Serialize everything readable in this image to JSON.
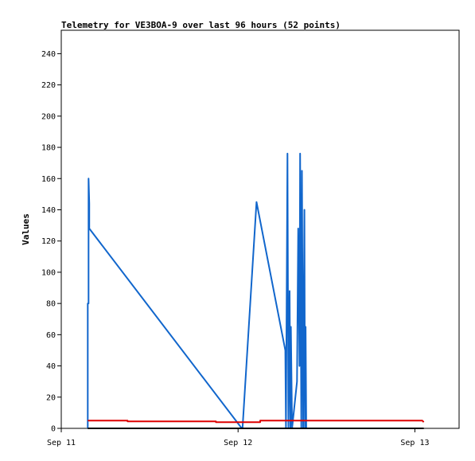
{
  "chart_data": {
    "type": "line",
    "title": "Telemetry for VE3BOA-9 over last 96 hours (52 points)",
    "xlabel": "",
    "ylabel": "Values",
    "xlim": [
      "2025-09-11T00:00",
      "2025-09-13T06:00"
    ],
    "ylim": [
      0,
      255
    ],
    "yticks": [
      0,
      20,
      40,
      60,
      80,
      100,
      120,
      140,
      160,
      180,
      200,
      220,
      240
    ],
    "xticks": [
      {
        "label": "Sep 11",
        "t": "2025-09-11T00:00"
      },
      {
        "label": "Sep 12",
        "t": "2025-09-12T00:00"
      },
      {
        "label": "Sep 13",
        "t": "2025-09-13T00:00"
      }
    ],
    "grid": false,
    "series": [
      {
        "color": "#1166cc",
        "points": [
          [
            "2025-09-11T03:36",
            0
          ],
          [
            "2025-09-11T03:36",
            80
          ],
          [
            "2025-09-11T03:42",
            80
          ],
          [
            "2025-09-11T03:42",
            160
          ],
          [
            "2025-09-11T03:48",
            144
          ],
          [
            "2025-09-11T03:48",
            128
          ],
          [
            "2025-09-12T00:30",
            0
          ],
          [
            "2025-09-12T00:36",
            0
          ],
          [
            "2025-09-12T02:30",
            145
          ],
          [
            "2025-09-12T06:25",
            50
          ],
          [
            "2025-09-12T06:30",
            0
          ],
          [
            "2025-09-12T06:42",
            176
          ],
          [
            "2025-09-12T06:50",
            0
          ],
          [
            "2025-09-12T07:00",
            88
          ],
          [
            "2025-09-12T07:06",
            0
          ],
          [
            "2025-09-12T07:10",
            65
          ],
          [
            "2025-09-12T07:20",
            0
          ],
          [
            "2025-09-12T08:00",
            30
          ],
          [
            "2025-09-12T08:10",
            128
          ],
          [
            "2025-09-12T08:20",
            40
          ],
          [
            "2025-09-12T08:25",
            176
          ],
          [
            "2025-09-12T08:35",
            0
          ],
          [
            "2025-09-12T08:40",
            165
          ],
          [
            "2025-09-12T08:50",
            0
          ],
          [
            "2025-09-12T09:00",
            140
          ],
          [
            "2025-09-12T09:05",
            0
          ],
          [
            "2025-09-12T09:10",
            65
          ],
          [
            "2025-09-12T09:15",
            0
          ]
        ]
      },
      {
        "color": "#dd0000",
        "points": [
          [
            "2025-09-11T03:36",
            5
          ],
          [
            "2025-09-11T09:00",
            5
          ],
          [
            "2025-09-11T09:00",
            4.5
          ],
          [
            "2025-09-11T21:00",
            4.5
          ],
          [
            "2025-09-11T21:00",
            4
          ],
          [
            "2025-09-12T03:00",
            4
          ],
          [
            "2025-09-12T03:00",
            5
          ],
          [
            "2025-09-12T09:00",
            5
          ],
          [
            "2025-09-13T01:00",
            5
          ],
          [
            "2025-09-13T01:12",
            4
          ]
        ]
      },
      {
        "color": "#000000",
        "points": [
          [
            "2025-09-11T03:36",
            0
          ],
          [
            "2025-09-13T01:12",
            0
          ]
        ]
      }
    ]
  }
}
